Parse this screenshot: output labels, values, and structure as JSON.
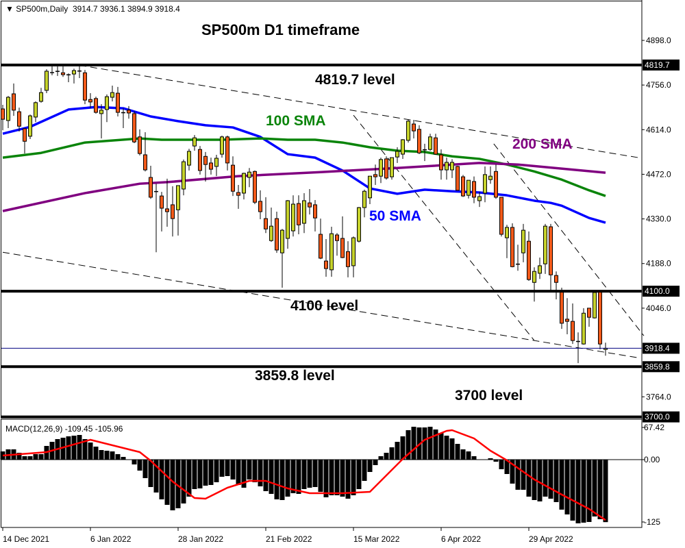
{
  "header": {
    "symbol_caption": "SP500m,Daily",
    "ohlc_caption": "3914.7 3936.1 3894.9 3918.4",
    "collapse_icon": "triangle-down-icon"
  },
  "annotations": {
    "title": "SP500m D1 timeframe",
    "level_4819": "4819.7 level",
    "sma100": "100 SMA",
    "sma200": "200 SMA",
    "sma50": "50 SMA",
    "level_4100": "4100 level",
    "level_3859": "3859.8 level",
    "level_3700": "3700 level"
  },
  "colors": {
    "bull": "#c6d22c",
    "bear": "#f25a1a",
    "sma50": "#0000ff",
    "sma100": "#0a840a",
    "sma200": "#800080",
    "signal": "#ff0000",
    "histogram": "#000000",
    "price_line": "#00007f"
  },
  "macd": {
    "caption": "MACD(12,26,9) -109.45 -105.96"
  },
  "chart_data": [
    {
      "type": "candlestick",
      "title": "SP500m,Daily",
      "ylim": [
        3697,
        5020
      ],
      "candles_ohlc": [
        [
          4680,
          4693,
          4612,
          4647
        ],
        [
          4643,
          4721,
          4619,
          4717
        ],
        [
          4728,
          4761,
          4658,
          4676
        ],
        [
          4671,
          4684,
          4608,
          4625
        ],
        [
          4617,
          4619,
          4538,
          4577
        ],
        [
          4593,
          4662,
          4584,
          4658
        ],
        [
          4654,
          4704,
          4638,
          4700
        ],
        [
          4704,
          4747,
          4700,
          4732
        ],
        [
          4739,
          4806,
          4730,
          4800
        ],
        [
          4795,
          4815,
          4787,
          4796
        ],
        [
          4800,
          4815,
          4785,
          4799
        ],
        [
          4795,
          4815,
          4782,
          4789
        ],
        [
          4789,
          4793,
          4765,
          4788
        ],
        [
          4791,
          4808,
          4761,
          4802
        ],
        [
          4801,
          4817,
          4778,
          4800
        ],
        [
          4795,
          4804,
          4695,
          4708
        ],
        [
          4710,
          4730,
          4682,
          4702
        ],
        [
          4713,
          4719,
          4665,
          4669
        ],
        [
          4665,
          4695,
          4586,
          4676
        ],
        [
          4678,
          4726,
          4638,
          4719
        ],
        [
          4717,
          4754,
          4704,
          4732
        ],
        [
          4730,
          4750,
          4656,
          4669
        ],
        [
          4669,
          4682,
          4619,
          4667
        ],
        [
          4676,
          4689,
          4649,
          4667
        ],
        [
          4665,
          4673,
          4571,
          4575
        ],
        [
          4591,
          4615,
          4532,
          4538
        ],
        [
          4534,
          4606,
          4481,
          4486
        ],
        [
          4462,
          4499,
          4394,
          4399
        ],
        [
          4418,
          4442,
          4224,
          4416
        ],
        [
          4403,
          4416,
          4290,
          4364
        ],
        [
          4362,
          4458,
          4305,
          4353
        ],
        [
          4375,
          4434,
          4274,
          4331
        ],
        [
          4359,
          4436,
          4277,
          4436
        ],
        [
          4425,
          4519,
          4405,
          4512
        ],
        [
          4501,
          4553,
          4484,
          4545
        ],
        [
          4562,
          4597,
          4547,
          4588
        ],
        [
          4551,
          4562,
          4471,
          4484
        ],
        [
          4529,
          4543,
          4449,
          4503
        ],
        [
          4508,
          4525,
          4471,
          4488
        ],
        [
          4497,
          4534,
          4466,
          4523
        ],
        [
          4536,
          4595,
          4525,
          4591
        ],
        [
          4591,
          4595,
          4484,
          4508
        ],
        [
          4501,
          4529,
          4403,
          4418
        ],
        [
          4414,
          4438,
          4362,
          4405
        ],
        [
          4412,
          4477,
          4392,
          4475
        ],
        [
          4462,
          4492,
          4431,
          4479
        ],
        [
          4481,
          4484,
          4377,
          4383
        ],
        [
          4386,
          4421,
          4329,
          4353
        ],
        [
          4331,
          4399,
          4285,
          4298
        ],
        [
          4261,
          4366,
          4257,
          4307
        ],
        [
          4331,
          4353,
          4222,
          4231
        ],
        [
          4222,
          4298,
          4111,
          4294
        ],
        [
          4268,
          4390,
          4235,
          4388
        ],
        [
          4292,
          4405,
          4274,
          4377
        ],
        [
          4379,
          4405,
          4281,
          4311
        ],
        [
          4316,
          4412,
          4285,
          4388
        ],
        [
          4381,
          4425,
          4344,
          4368
        ],
        [
          4375,
          4390,
          4290,
          4333
        ],
        [
          4281,
          4331,
          4202,
          4205
        ],
        [
          4196,
          4266,
          4146,
          4172
        ],
        [
          4168,
          4305,
          4146,
          4283
        ],
        [
          4279,
          4285,
          4213,
          4261
        ],
        [
          4268,
          4338,
          4205,
          4207
        ],
        [
          4226,
          4259,
          4144,
          4178
        ],
        [
          4181,
          4274,
          4144,
          4270
        ],
        [
          4259,
          4368,
          4255,
          4366
        ],
        [
          4366,
          4423,
          4335,
          4418
        ],
        [
          4397,
          4466,
          4377,
          4466
        ],
        [
          4471,
          4503,
          4438,
          4464
        ],
        [
          4466,
          4525,
          4444,
          4519
        ],
        [
          4521,
          4529,
          4455,
          4460
        ],
        [
          4464,
          4525,
          4455,
          4525
        ],
        [
          4527,
          4558,
          4508,
          4545
        ],
        [
          4536,
          4584,
          4521,
          4582
        ],
        [
          4580,
          4645,
          4573,
          4641
        ],
        [
          4632,
          4645,
          4586,
          4610
        ],
        [
          4615,
          4628,
          4536,
          4540
        ],
        [
          4549,
          4569,
          4514,
          4551
        ],
        [
          4551,
          4601,
          4547,
          4591
        ],
        [
          4588,
          4601,
          4534,
          4536
        ],
        [
          4534,
          4551,
          4455,
          4486
        ],
        [
          4486,
          4525,
          4455,
          4510
        ],
        [
          4486,
          4520,
          4460,
          4510
        ],
        [
          4497,
          4499,
          4421,
          4421
        ],
        [
          4464,
          4470,
          4400,
          4403
        ],
        [
          4405,
          4440,
          4395,
          4453
        ],
        [
          4449,
          4465,
          4380,
          4399
        ],
        [
          4388,
          4416,
          4368,
          4401
        ],
        [
          4412,
          4497,
          4383,
          4471
        ],
        [
          4455,
          4497,
          4442,
          4466
        ],
        [
          4481,
          4503,
          4394,
          4399
        ],
        [
          4399,
          4399,
          4274,
          4281
        ],
        [
          4270,
          4311,
          4205,
          4303
        ],
        [
          4303,
          4316,
          4176,
          4178
        ],
        [
          4185,
          4248,
          4165,
          4187
        ],
        [
          4222,
          4314,
          4192,
          4294
        ],
        [
          4259,
          4290,
          4133,
          4137
        ],
        [
          4128,
          4176,
          4067,
          4163
        ],
        [
          4157,
          4207,
          4139,
          4181
        ],
        [
          4187,
          4314,
          4155,
          4307
        ],
        [
          4305,
          4314,
          4100,
          4152
        ],
        [
          4150,
          4163,
          4074,
          4128
        ],
        [
          4100,
          4111,
          3980,
          3998
        ],
        [
          4011,
          4078,
          3963,
          4004
        ],
        [
          4004,
          4061,
          3932,
          3943
        ],
        [
          3941,
          3969,
          3871,
          3939
        ],
        [
          3932,
          4046,
          3930,
          4030
        ],
        [
          4046,
          4046,
          3987,
          4017
        ],
        [
          4015,
          4100,
          4013,
          4096
        ],
        [
          4100,
          4100,
          3915,
          3932
        ],
        [
          3914.7,
          3936.1,
          3894.9,
          3918.4
        ]
      ],
      "sma_lines": [
        {
          "name": "50 SMA",
          "color_key": "sma50",
          "points": [
            [
              0,
              4601
            ],
            [
              5,
              4623
            ],
            [
              12,
              4678
            ],
            [
              17,
              4686
            ],
            [
              22,
              4682
            ],
            [
              27,
              4656
            ],
            [
              32,
              4641
            ],
            [
              37,
              4628
            ],
            [
              42,
              4621
            ],
            [
              47,
              4591
            ],
            [
              52,
              4536
            ],
            [
              57,
              4525
            ],
            [
              62,
              4484
            ],
            [
              67,
              4427
            ],
            [
              72,
              4410
            ],
            [
              77,
              4423
            ],
            [
              82,
              4418
            ],
            [
              87,
              4414
            ],
            [
              92,
              4405
            ],
            [
              97,
              4388
            ],
            [
              100,
              4381
            ],
            [
              102,
              4372
            ],
            [
              107,
              4333
            ],
            [
              110,
              4318
            ]
          ]
        },
        {
          "name": "100 SMA",
          "color_key": "sma100",
          "points": [
            [
              0,
              4525
            ],
            [
              7,
              4540
            ],
            [
              15,
              4573
            ],
            [
              25,
              4586
            ],
            [
              29,
              4582
            ],
            [
              40,
              4582
            ],
            [
              47,
              4586
            ],
            [
              52,
              4582
            ],
            [
              57,
              4582
            ],
            [
              62,
              4573
            ],
            [
              67,
              4558
            ],
            [
              72,
              4547
            ],
            [
              77,
              4543
            ],
            [
              82,
              4529
            ],
            [
              87,
              4521
            ],
            [
              92,
              4503
            ],
            [
              97,
              4481
            ],
            [
              102,
              4455
            ],
            [
              107,
              4421
            ],
            [
              110,
              4403
            ]
          ]
        },
        {
          "name": "200 SMA",
          "color_key": "sma200",
          "points": [
            [
              0,
              4355
            ],
            [
              15,
              4412
            ],
            [
              25,
              4442
            ],
            [
              30,
              4447
            ],
            [
              43,
              4466
            ],
            [
              58,
              4479
            ],
            [
              72,
              4492
            ],
            [
              87,
              4508
            ],
            [
              94,
              4503
            ],
            [
              110,
              4477
            ]
          ]
        }
      ],
      "levels": [
        4819.7,
        4100.0,
        3859.8,
        3700.0
      ],
      "current_price": 3918.4,
      "trend_lines": [
        {
          "from": [
            14,
            4819
          ],
          "to": [
            116,
            4525
          ]
        },
        {
          "from": [
            0,
            4224
          ],
          "to": [
            116,
            3888
          ]
        },
        {
          "from": [
            64,
            4660
          ],
          "to": [
            97,
            3943
          ]
        },
        {
          "from": [
            89.6,
            4569
          ],
          "to": [
            117,
            3958
          ]
        }
      ],
      "y_ticks": [
        "4898.0",
        "4756.0",
        "4614.0",
        "4472.0",
        "4330.0",
        "4188.0",
        "4046.0",
        "3764.0"
      ],
      "y_highlight_ticks": [
        "4819.7",
        "4100.0",
        "3918.4",
        "3859.8",
        "3700.0"
      ],
      "x_ticks": [
        {
          "label": "14 Dec 2021",
          "bar": 0
        },
        {
          "label": "6 Jan 2022",
          "bar": 16
        },
        {
          "label": "28 Jan 2022",
          "bar": 32
        },
        {
          "label": "21 Feb 2022",
          "bar": 48
        },
        {
          "label": "15 Mar 2022",
          "bar": 64
        },
        {
          "label": "6 Apr 2022",
          "bar": 80
        },
        {
          "label": "29 Apr 2022",
          "bar": 96
        }
      ]
    },
    {
      "type": "bar",
      "title": "MACD(12,26,9) -109.45 -105.96",
      "ylim": [
        -118.8,
        68.4
      ],
      "y_ticks": [
        "67.42",
        "0.00",
        "-125"
      ],
      "histogram": [
        14.4,
        18,
        18,
        12,
        6,
        6,
        9.6,
        9.6,
        24,
        31.2,
        36,
        38.4,
        40.8,
        42,
        43.2,
        36,
        30,
        22.8,
        16.8,
        15.6,
        14.4,
        9.6,
        4.8,
        0,
        -8.4,
        -19.2,
        -32.4,
        -48,
        -57.6,
        -69.6,
        -79.2,
        -88.8,
        -85.2,
        -76.8,
        -64.8,
        -51.6,
        -50.4,
        -45.6,
        -44.4,
        -39.6,
        -30,
        -28.8,
        -34.8,
        -44.4,
        -49.2,
        -34.8,
        -39.6,
        -46.8,
        -55.2,
        -60,
        -69.6,
        -70.8,
        -64.8,
        -58.8,
        -60,
        -51.6,
        -49.2,
        -48,
        -56.4,
        -66,
        -62.4,
        -62.4,
        -64.8,
        -68.4,
        -62.4,
        -51.6,
        -37.2,
        -21.6,
        -9.6,
        6,
        12,
        21.6,
        31.2,
        40.8,
        51.6,
        57.6,
        56.4,
        56.4,
        57.6,
        52.8,
        46.8,
        42,
        37.2,
        27.6,
        18,
        14.4,
        6,
        0,
        0,
        2.4,
        -3.6,
        -16.8,
        -25.2,
        -42,
        -52.8,
        -52.8,
        -64.8,
        -70.8,
        -73.2,
        -64.8,
        -68.4,
        -74.4,
        -87.6,
        -96,
        -106.8,
        -111.6,
        -110.4,
        -109.2,
        -99.6,
        -104.4,
        -109.45
      ],
      "signal_points": [
        [
          0,
          7.2
        ],
        [
          8,
          13.2
        ],
        [
          16,
          34.8
        ],
        [
          25,
          13.2
        ],
        [
          27,
          -2
        ],
        [
          31,
          -38.4
        ],
        [
          35,
          -67.2
        ],
        [
          37,
          -68.4
        ],
        [
          41,
          -49.2
        ],
        [
          45,
          -37.2
        ],
        [
          48,
          -37.2
        ],
        [
          52,
          -50.4
        ],
        [
          56,
          -58.8
        ],
        [
          62,
          -58.8
        ],
        [
          67,
          -56.4
        ],
        [
          72,
          -8.4
        ],
        [
          73,
          1.2
        ],
        [
          77,
          34.8
        ],
        [
          81,
          50.4
        ],
        [
          82,
          51.6
        ],
        [
          86,
          37.2
        ],
        [
          89,
          15.6
        ],
        [
          92,
          -1.2
        ],
        [
          97,
          -34.8
        ],
        [
          102,
          -61.2
        ],
        [
          107,
          -86.4
        ],
        [
          110,
          -105.96
        ]
      ]
    }
  ]
}
